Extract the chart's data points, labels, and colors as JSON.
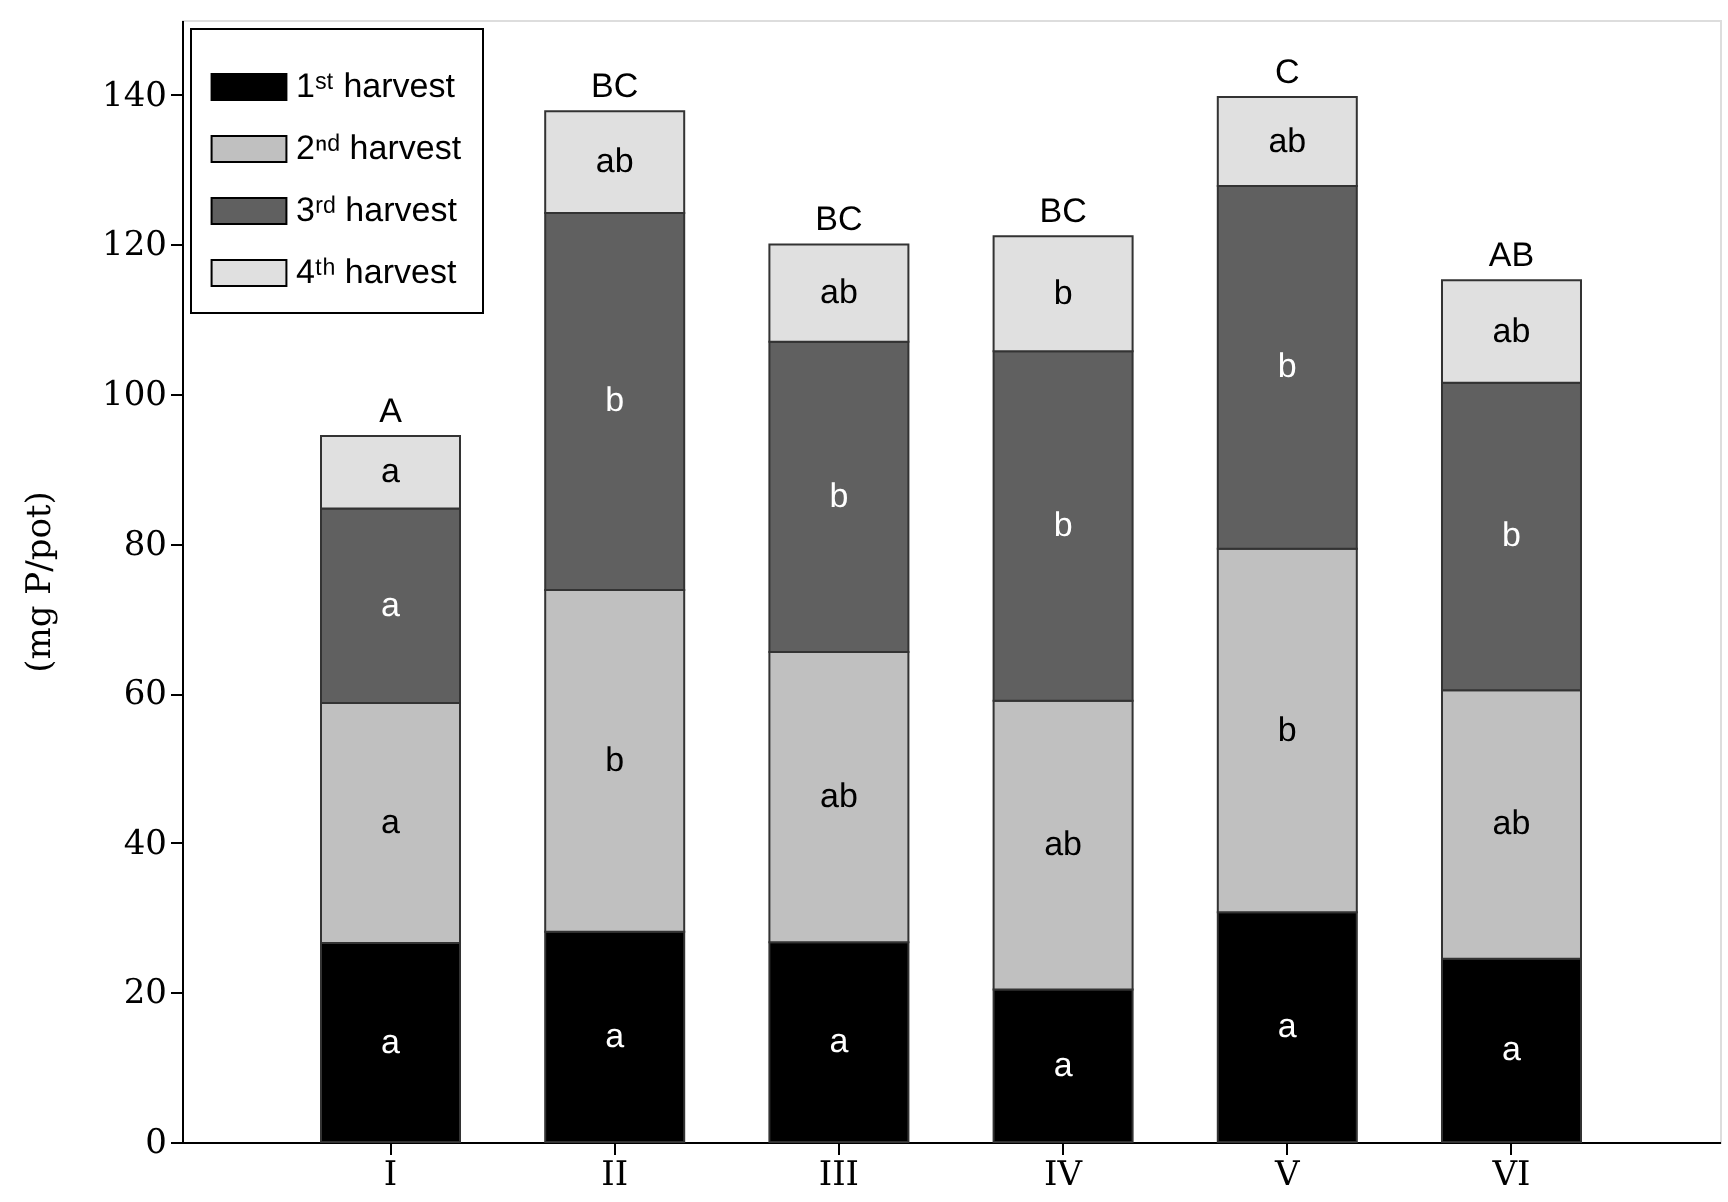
{
  "chart_data": {
    "type": "bar",
    "stacked": true,
    "ylabel": "(mg P/pot)",
    "categories": [
      "I",
      "II",
      "III",
      "IV",
      "V",
      "VI"
    ],
    "series": [
      {
        "name": "1ˢᵗ harvest",
        "color": "#000000",
        "values": [
          26.6,
          28.1,
          26.7,
          20.4,
          30.7,
          24.5
        ],
        "value_labels": [
          "a",
          "a",
          "a",
          "a",
          "a",
          "a"
        ]
      },
      {
        "name": "2ⁿᵈ harvest",
        "color": "#c0c0c0",
        "values": [
          32.1,
          45.7,
          38.8,
          38.6,
          48.6,
          35.9
        ],
        "value_labels": [
          "a",
          "b",
          "ab",
          "ab",
          "b",
          "ab"
        ]
      },
      {
        "name": "3ʳᵈ harvest",
        "color": "#606060",
        "values": [
          26.0,
          50.4,
          41.5,
          46.7,
          48.5,
          41.1
        ],
        "value_labels": [
          "a",
          "b",
          "b",
          "b",
          "b",
          "b"
        ]
      },
      {
        "name": "4ᵗʰ harvest",
        "color": "#e0e0e0",
        "values": [
          9.7,
          13.6,
          13.0,
          15.4,
          11.9,
          13.7
        ],
        "value_labels": [
          "a",
          "ab",
          "ab",
          "b",
          "ab",
          "ab"
        ]
      }
    ],
    "totals": [
      "A",
      "BC",
      "BC",
      "BC",
      "C",
      "AB"
    ],
    "ylim": [
      0,
      150
    ],
    "yticks": [
      0,
      20,
      40,
      60,
      80,
      100,
      120,
      140
    ],
    "grid": false,
    "legend": "top left"
  }
}
